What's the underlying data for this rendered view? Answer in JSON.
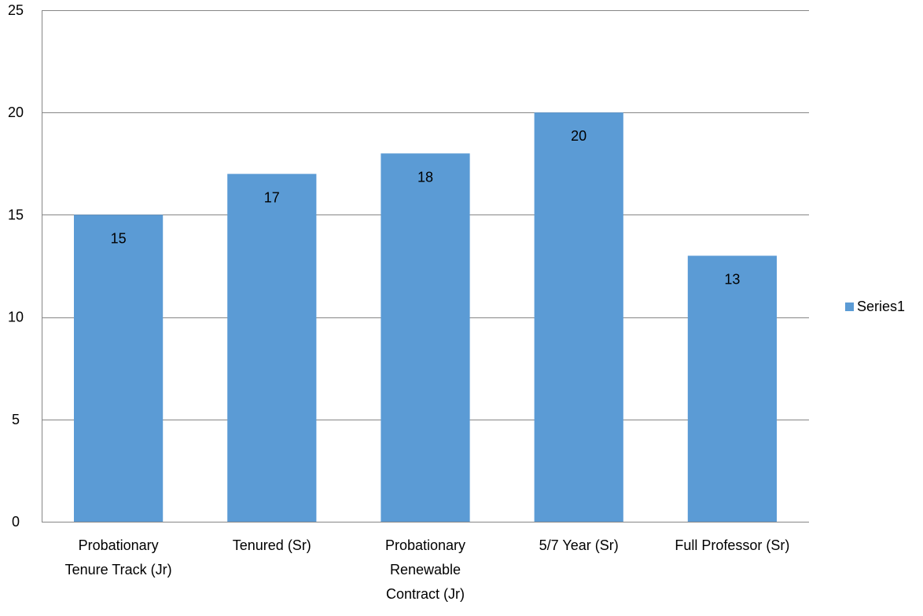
{
  "chart_data": {
    "type": "bar",
    "categories": [
      [
        "Probationary",
        "Tenure Track (Jr)"
      ],
      [
        "Tenured (Sr)"
      ],
      [
        "Probationary",
        "Renewable",
        "Contract (Jr)"
      ],
      [
        "5/7 Year (Sr)"
      ],
      [
        "Full Professor (Sr)"
      ]
    ],
    "series": [
      {
        "name": "Series1",
        "values": [
          15,
          17,
          18,
          20,
          13
        ]
      }
    ],
    "data_labels": [
      "15",
      "17",
      "18",
      "20",
      "13"
    ],
    "ylim": [
      0,
      25
    ],
    "y_ticks": [
      0,
      5,
      10,
      15,
      20,
      25
    ],
    "y_tick_labels": [
      "0",
      "5",
      "10",
      "15",
      "20",
      "25"
    ],
    "title": "",
    "xlabel": "",
    "ylabel": "",
    "grid": true,
    "legend_position": "right",
    "colors": {
      "bar": "#5B9BD5",
      "grid": "#868686",
      "axis": "#868686",
      "text": "#000000"
    }
  }
}
